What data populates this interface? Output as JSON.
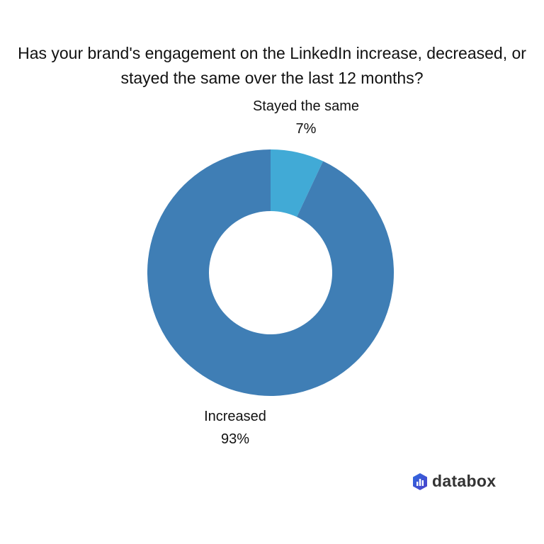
{
  "chart_data": {
    "type": "pie",
    "variant": "donut",
    "title": "Has your brand's engagement on the LinkedIn increase, decreased, or stayed the same over the last 12 months?",
    "slices": [
      {
        "label": "Stayed the same",
        "value": 7,
        "value_label": "7%",
        "color": "#41AAD6"
      },
      {
        "label": "Increased",
        "value": 93,
        "value_label": "93%",
        "color": "#3F7EB5"
      }
    ]
  },
  "brand": {
    "name": "databox",
    "color": "#3D5CD9"
  }
}
